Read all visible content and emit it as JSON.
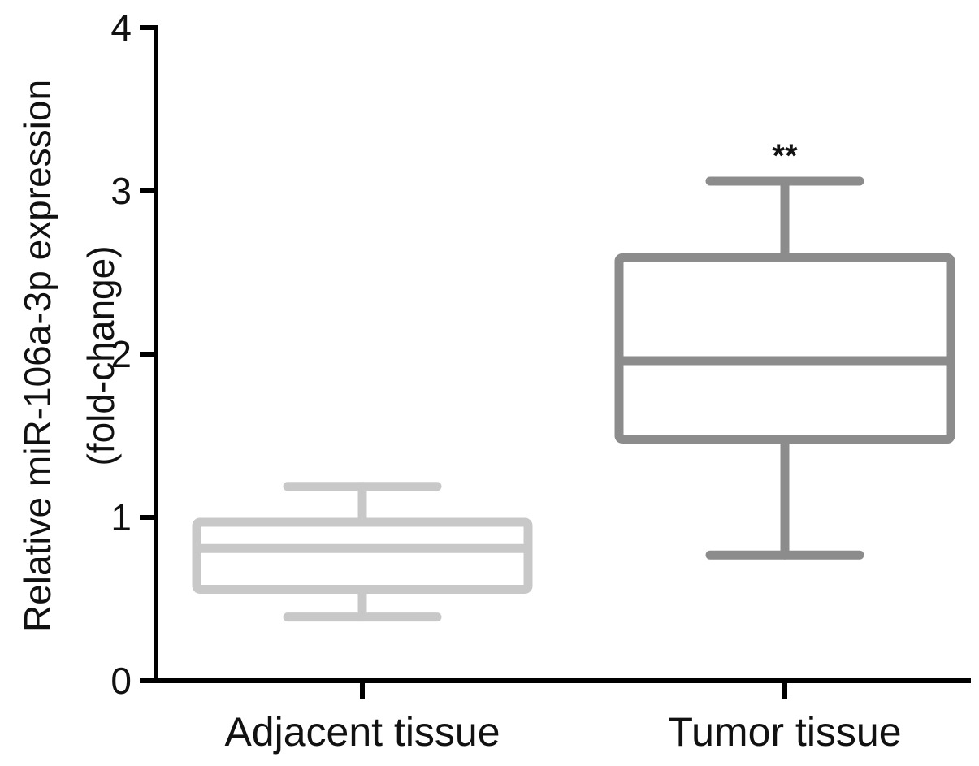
{
  "chart_data": {
    "type": "box",
    "ylabel_lines": [
      "Relative miR-106a-3p expression",
      "(fold-change)"
    ],
    "ylim": [
      0,
      4
    ],
    "yticks": [
      0,
      1,
      2,
      3,
      4
    ],
    "ytick_labels": [
      "0",
      "1",
      "2",
      "3",
      "4"
    ],
    "grid": false,
    "categories": [
      "Adjacent tissue",
      "Tumor tissue"
    ],
    "boxes": [
      {
        "category": "Adjacent tissue",
        "min": 0.39,
        "q1": 0.56,
        "median": 0.81,
        "q3": 0.97,
        "max": 1.19,
        "color": "#c8c8c8",
        "annotation": ""
      },
      {
        "category": "Tumor tissue",
        "min": 0.77,
        "q1": 1.48,
        "median": 1.96,
        "q3": 2.59,
        "max": 3.06,
        "color": "#8c8c8c",
        "annotation": "**"
      }
    ]
  }
}
